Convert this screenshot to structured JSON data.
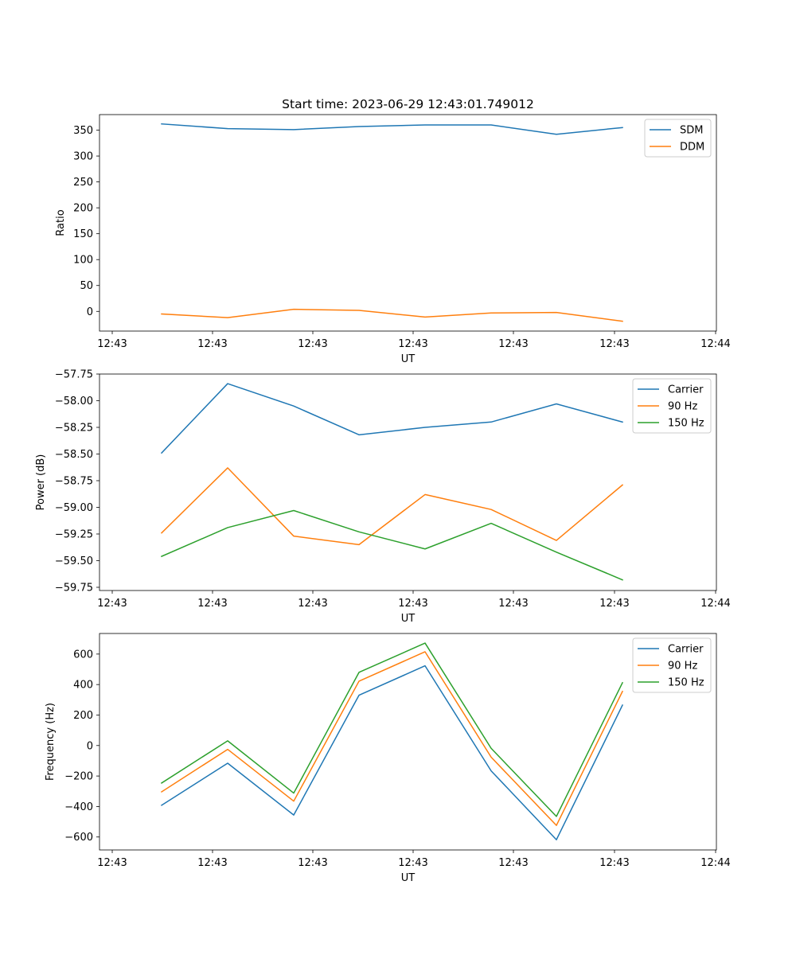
{
  "chart_data": [
    {
      "type": "line",
      "title": "Start time: 2023-06-29 12:43:01.749012",
      "xlabel": "UT",
      "ylabel": "Ratio",
      "x_tick_labels": [
        "12:43",
        "12:43",
        "12:43",
        "12:43",
        "12:43",
        "12:43",
        "12:44"
      ],
      "y_ticks": [
        0,
        50,
        100,
        150,
        200,
        250,
        300,
        350
      ],
      "y_tick_labels": [
        "0",
        "50",
        "100",
        "150",
        "200",
        "250",
        "300",
        "350"
      ],
      "ylim": [
        -38,
        380
      ],
      "legend_position": "top-right",
      "grid": false,
      "series": [
        {
          "name": "SDM",
          "color": "#1f77b4",
          "values": [
            362,
            353,
            351,
            357,
            360,
            360,
            342,
            355
          ]
        },
        {
          "name": "DDM",
          "color": "#ff7f0e",
          "values": [
            -5,
            -12,
            4,
            2,
            -11,
            -3,
            -2,
            -19
          ]
        }
      ]
    },
    {
      "type": "line",
      "title": "",
      "xlabel": "UT",
      "ylabel": "Power (dB)",
      "x_tick_labels": [
        "12:43",
        "12:43",
        "12:43",
        "12:43",
        "12:43",
        "12:43",
        "12:44"
      ],
      "y_ticks": [
        -59.75,
        -59.5,
        -59.25,
        -59.0,
        -58.75,
        -58.5,
        -58.25,
        -58.0,
        -57.75
      ],
      "y_tick_labels": [
        "−59.75",
        "−59.50",
        "−59.25",
        "−59.00",
        "−58.75",
        "−58.50",
        "−58.25",
        "−58.00",
        "−57.75"
      ],
      "ylim": [
        -59.78,
        -57.75
      ],
      "legend_position": "top-right",
      "grid": false,
      "series": [
        {
          "name": "Carrier",
          "color": "#1f77b4",
          "values": [
            -58.49,
            -57.84,
            -58.05,
            -58.32,
            -58.25,
            -58.2,
            -58.03,
            -58.2
          ]
        },
        {
          "name": "90 Hz",
          "color": "#ff7f0e",
          "values": [
            -59.24,
            -58.63,
            -59.27,
            -59.35,
            -58.88,
            -59.02,
            -59.31,
            -58.79
          ]
        },
        {
          "name": "150 Hz",
          "color": "#2ca02c",
          "values": [
            -59.46,
            -59.19,
            -59.03,
            -59.23,
            -59.39,
            -59.15,
            -59.42,
            -59.68
          ]
        }
      ]
    },
    {
      "type": "line",
      "title": "",
      "xlabel": "UT",
      "ylabel": "Frequency (Hz)",
      "x_tick_labels": [
        "12:43",
        "12:43",
        "12:43",
        "12:43",
        "12:43",
        "12:43",
        "12:44"
      ],
      "y_ticks": [
        -600,
        -400,
        -200,
        0,
        200,
        400,
        600
      ],
      "y_tick_labels": [
        "−600",
        "−400",
        "−200",
        "0",
        "200",
        "400",
        "600"
      ],
      "ylim": [
        -685,
        735
      ],
      "legend_position": "top-right",
      "grid": false,
      "series": [
        {
          "name": "Carrier",
          "color": "#1f77b4",
          "values": [
            -392,
            -116,
            -456,
            330,
            523,
            -166,
            -618,
            265
          ]
        },
        {
          "name": "90 Hz",
          "color": "#ff7f0e",
          "values": [
            -304,
            -25,
            -365,
            422,
            615,
            -76,
            -524,
            355
          ]
        },
        {
          "name": "150 Hz",
          "color": "#2ca02c",
          "values": [
            -246,
            31,
            -312,
            480,
            672,
            -18,
            -465,
            412
          ]
        }
      ]
    }
  ]
}
